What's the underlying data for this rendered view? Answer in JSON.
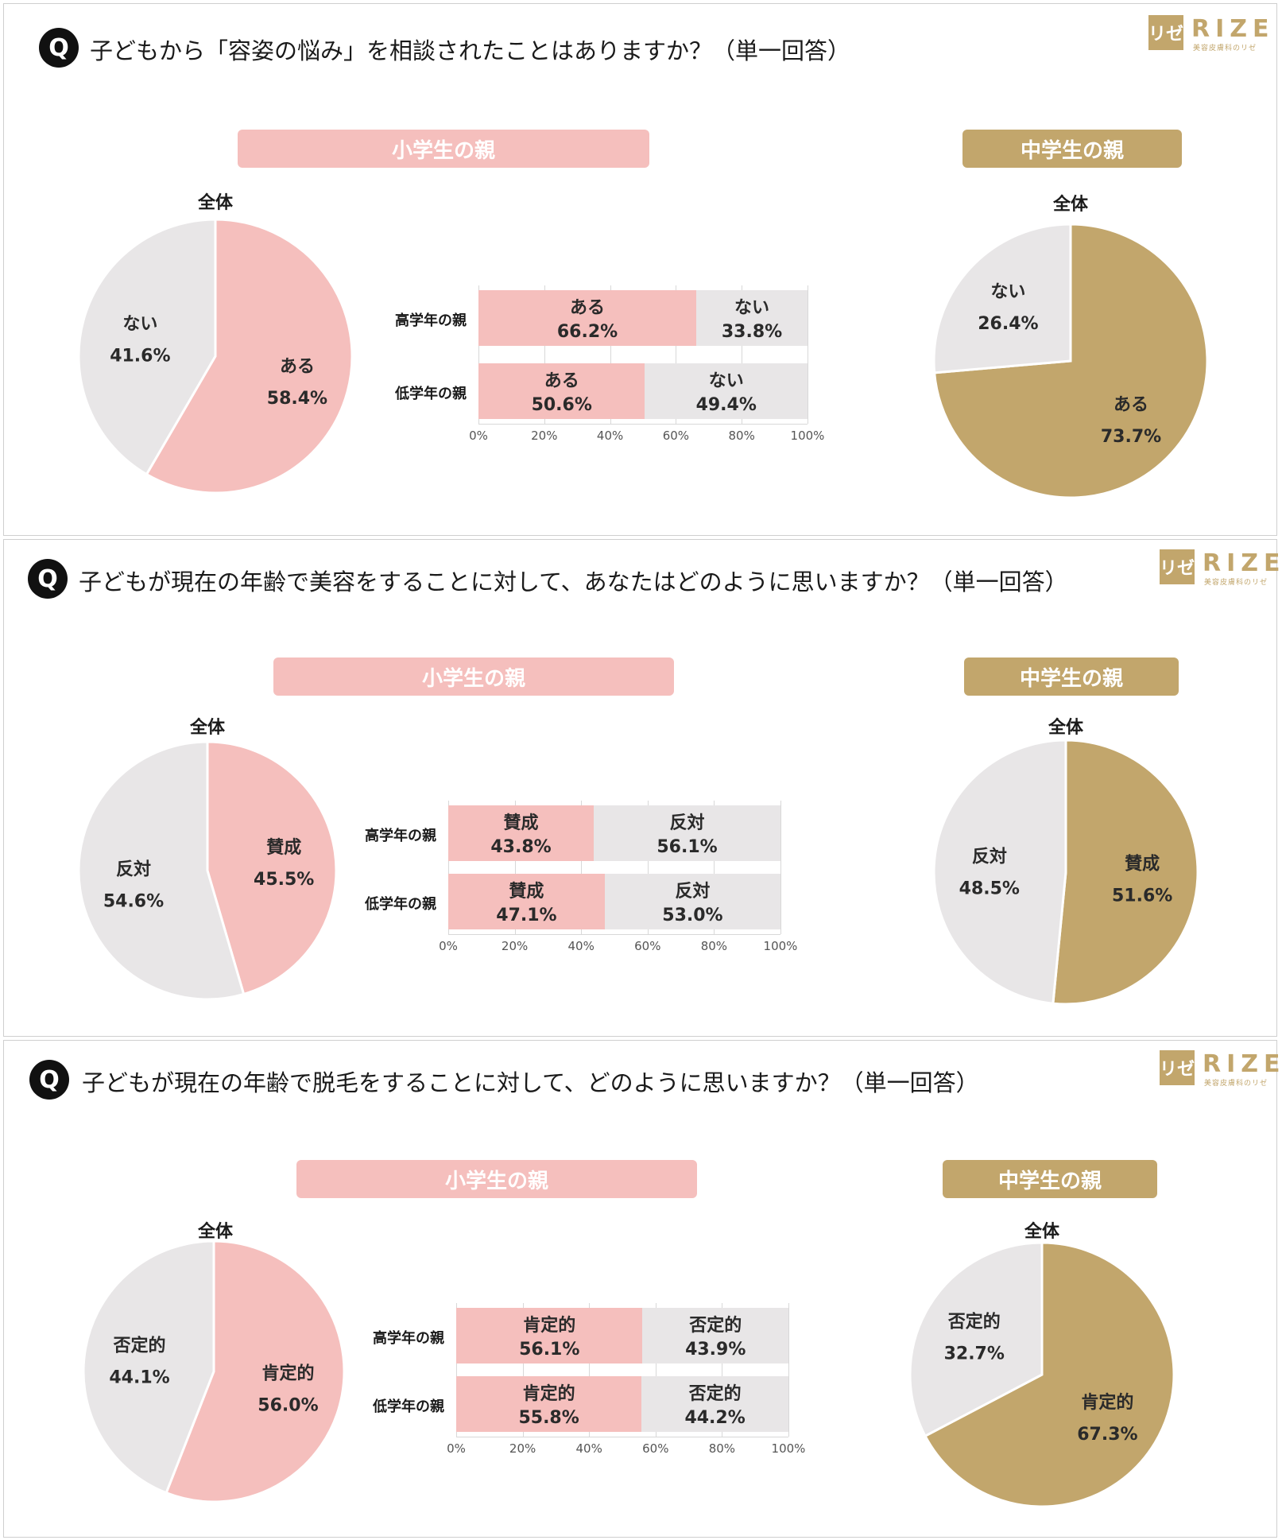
{
  "logo": {
    "mark": "リゼ",
    "word": "RIZE",
    "sub": "美容皮膚科のリゼ"
  },
  "colors": {
    "pink": "#f5bfbd",
    "gold": "#c2a66c",
    "gray": "#e8e6e7"
  },
  "chart_data": [
    {
      "type": "pie",
      "title": "子どもから「容姿の悩み」を相談されたことはありますか？（単一回答）",
      "group": "小学生の親",
      "subtitle": "全体",
      "slices": [
        {
          "label": "ある",
          "value": 58.4
        },
        {
          "label": "ない",
          "value": 41.6
        }
      ]
    },
    {
      "type": "bar",
      "title": "子どもから「容姿の悩み」を相談されたことはありますか？（単一回答）",
      "group": "小学生の親",
      "stacked": true,
      "orientation": "horizontal",
      "categories": [
        "高学年の親",
        "低学年の親"
      ],
      "series": [
        {
          "name": "ある",
          "values": [
            66.2,
            50.6
          ],
          "labels": [
            "66.2%",
            "50.6%"
          ]
        },
        {
          "name": "ない",
          "values": [
            33.8,
            49.4
          ],
          "labels": [
            "33.8%",
            "49.4%"
          ]
        }
      ],
      "xlim": [
        0,
        100
      ],
      "xticks": [
        "0%",
        "20%",
        "40%",
        "60%",
        "80%",
        "100%"
      ]
    },
    {
      "type": "pie",
      "title": "子どもから「容姿の悩み」を相談されたことはありますか？（単一回答）",
      "group": "中学生の親",
      "subtitle": "全体",
      "slices": [
        {
          "label": "ある",
          "value": 73.7
        },
        {
          "label": "ない",
          "value": 26.4
        }
      ]
    },
    {
      "type": "pie",
      "title": "子どもが現在の年齢で美容をすることに対して、あなたはどのように思いますか？（単一回答）",
      "group": "小学生の親",
      "subtitle": "全体",
      "slices": [
        {
          "label": "賛成",
          "value": 45.5
        },
        {
          "label": "反対",
          "value": 54.6
        }
      ]
    },
    {
      "type": "bar",
      "title": "子どもが現在の年齢で美容をすることに対して、あなたはどのように思いますか？（単一回答）",
      "group": "小学生の親",
      "stacked": true,
      "orientation": "horizontal",
      "categories": [
        "高学年の親",
        "低学年の親"
      ],
      "series": [
        {
          "name": "賛成",
          "values": [
            43.8,
            47.1
          ],
          "labels": [
            "43.8%",
            "47.1%"
          ]
        },
        {
          "name": "反対",
          "values": [
            56.1,
            53.0
          ],
          "labels": [
            "56.1%",
            "53.0%"
          ]
        }
      ],
      "xlim": [
        0,
        100
      ],
      "xticks": [
        "0%",
        "20%",
        "40%",
        "60%",
        "80%",
        "100%"
      ]
    },
    {
      "type": "pie",
      "title": "子どもが現在の年齢で美容をすることに対して、あなたはどのように思いますか？（単一回答）",
      "group": "中学生の親",
      "subtitle": "全体",
      "slices": [
        {
          "label": "賛成",
          "value": 51.6
        },
        {
          "label": "反対",
          "value": 48.5
        }
      ]
    },
    {
      "type": "pie",
      "title": "子どもが現在の年齢で脱毛をすることに対して、どのように思いますか？（単一回答）",
      "group": "小学生の親",
      "subtitle": "全体",
      "slices": [
        {
          "label": "肯定的",
          "value": 56.0
        },
        {
          "label": "否定的",
          "value": 44.1
        }
      ]
    },
    {
      "type": "bar",
      "title": "子どもが現在の年齢で脱毛をすることに対して、どのように思いますか？（単一回答）",
      "group": "小学生の親",
      "stacked": true,
      "orientation": "horizontal",
      "categories": [
        "高学年の親",
        "低学年の親"
      ],
      "series": [
        {
          "name": "肯定的",
          "values": [
            56.1,
            55.8
          ],
          "labels": [
            "56.1%",
            "55.8%"
          ]
        },
        {
          "name": "否定的",
          "values": [
            43.9,
            44.2
          ],
          "labels": [
            "43.9%",
            "44.2%"
          ]
        }
      ],
      "xlim": [
        0,
        100
      ],
      "xticks": [
        "0%",
        "20%",
        "40%",
        "60%",
        "80%",
        "100%"
      ]
    },
    {
      "type": "pie",
      "title": "子どもが現在の年齢で脱毛をすることに対して、どのように思いますか？（単一回答）",
      "group": "中学生の親",
      "subtitle": "全体",
      "slices": [
        {
          "label": "肯定的",
          "value": 67.3
        },
        {
          "label": "否定的",
          "value": 32.7
        }
      ]
    }
  ]
}
